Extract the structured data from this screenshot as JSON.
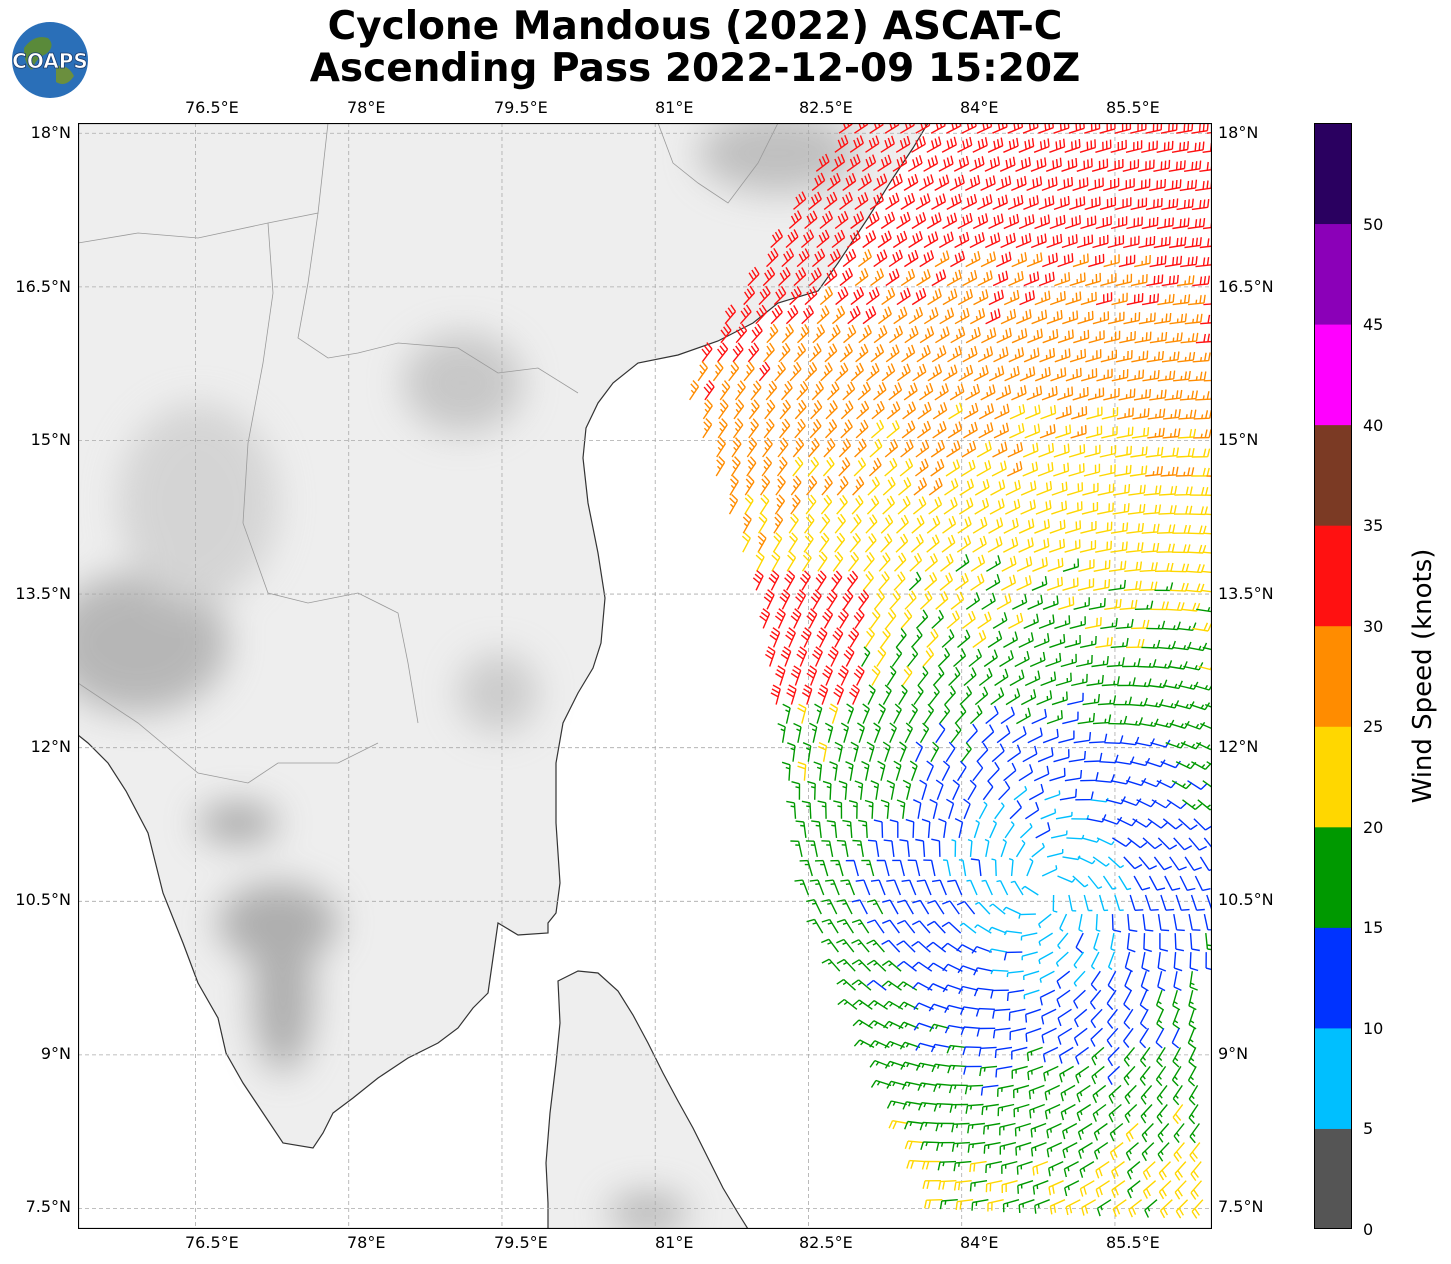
{
  "title": {
    "line1": "Cyclone Mandous (2022) ASCAT-C",
    "line2": "Ascending Pass 2022-12-09 15:20Z"
  },
  "logo": {
    "text": "COAPS"
  },
  "map": {
    "lon_range": [
      75.35,
      86.45
    ],
    "lat_range": [
      7.3,
      18.1
    ],
    "lon_ticks": [
      "76.5°E",
      "78°E",
      "79.5°E",
      "81°E",
      "82.5°E",
      "84°E",
      "85.5°E"
    ],
    "lat_ticks": [
      "18°N",
      "16.5°N",
      "15°N",
      "13.5°N",
      "12°N",
      "10.5°N",
      "9°N",
      "7.5°N"
    ],
    "gridlines": true,
    "land_shading": "grayscale cloud imagery"
  },
  "colorbar": {
    "label": "Wind Speed (knots)",
    "ticks": [
      "0",
      "5",
      "10",
      "15",
      "20",
      "25",
      "30",
      "35",
      "40",
      "45",
      "50"
    ],
    "colors": [
      "#555555",
      "#00bfff",
      "#0033ff",
      "#009900",
      "#ffd700",
      "#ff8c00",
      "#ff1111",
      "#7b3a24",
      "#ff00ff",
      "#8b00b8",
      "#2a0060"
    ]
  },
  "wind_field": {
    "units": "knots",
    "center_approx": {
      "lon": 84.8,
      "lat": 10.6
    },
    "swath": "east of 81.3°E"
  }
}
